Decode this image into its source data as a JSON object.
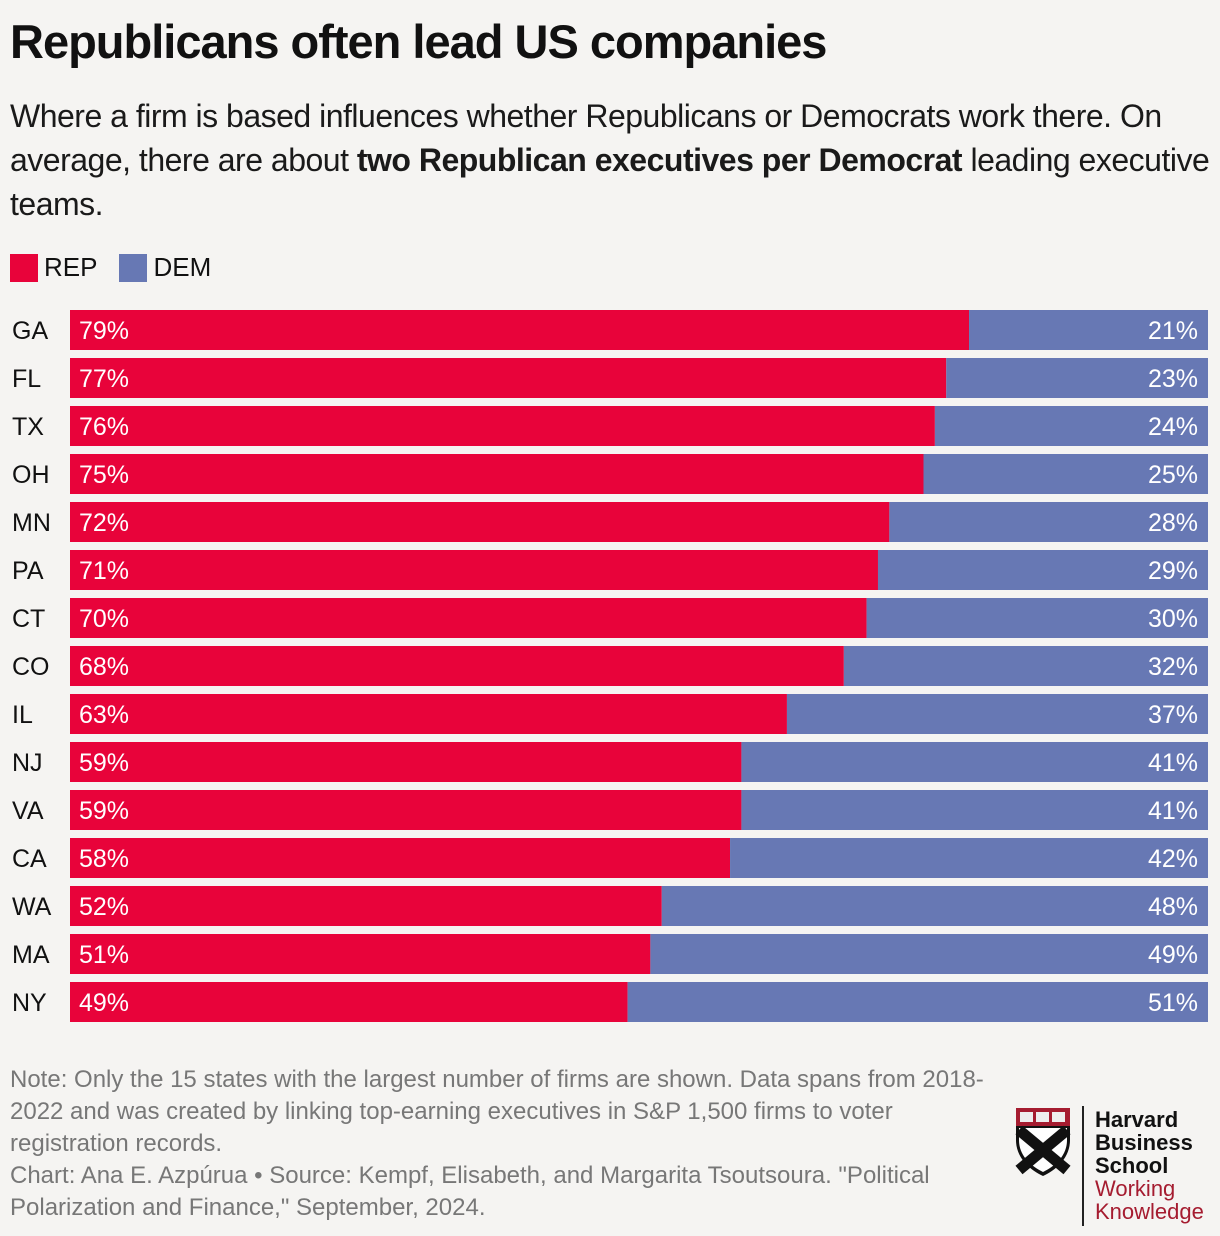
{
  "title": "Republicans often lead US companies",
  "subtitle": {
    "part1": "Where a firm is based influences whether Republicans or Democrats work there. On average, there are about ",
    "bold": "two Republican executives per Democrat",
    "part2": " leading executive teams."
  },
  "colors": {
    "rep": "#e8033a",
    "dem": "#6778b4",
    "background": "#f5f4f2"
  },
  "chart_data": {
    "type": "bar",
    "orientation": "horizontal",
    "stacked": true,
    "xlim": [
      0,
      100
    ],
    "legend_position": "top-left",
    "grid": false,
    "categories": [
      "GA",
      "FL",
      "TX",
      "OH",
      "MN",
      "PA",
      "CT",
      "CO",
      "IL",
      "NJ",
      "VA",
      "CA",
      "WA",
      "MA",
      "NY"
    ],
    "series": [
      {
        "name": "REP",
        "color": "#e8033a",
        "values": [
          79,
          77,
          76,
          75,
          72,
          71,
          70,
          68,
          63,
          59,
          59,
          58,
          52,
          51,
          49
        ]
      },
      {
        "name": "DEM",
        "color": "#6778b4",
        "values": [
          21,
          23,
          24,
          25,
          28,
          29,
          30,
          32,
          37,
          41,
          41,
          42,
          48,
          49,
          51
        ]
      }
    ]
  },
  "note": {
    "line1": "Note: Only the 15 states with the largest number of firms are shown. Data spans from 2018-2022 and was created by linking top-earning executives in S&P 1,500 firms to voter registration records.",
    "line2": "Chart: Ana E. Azpúrua • Source: Kempf, Elisabeth, and Margarita Tsoutsoura. \"Political Polarization and Finance,\" September, 2024."
  },
  "logo": {
    "line1": "Harvard",
    "line2": "Business",
    "line3": "School",
    "line4": "Working",
    "line5": "Knowledge"
  }
}
